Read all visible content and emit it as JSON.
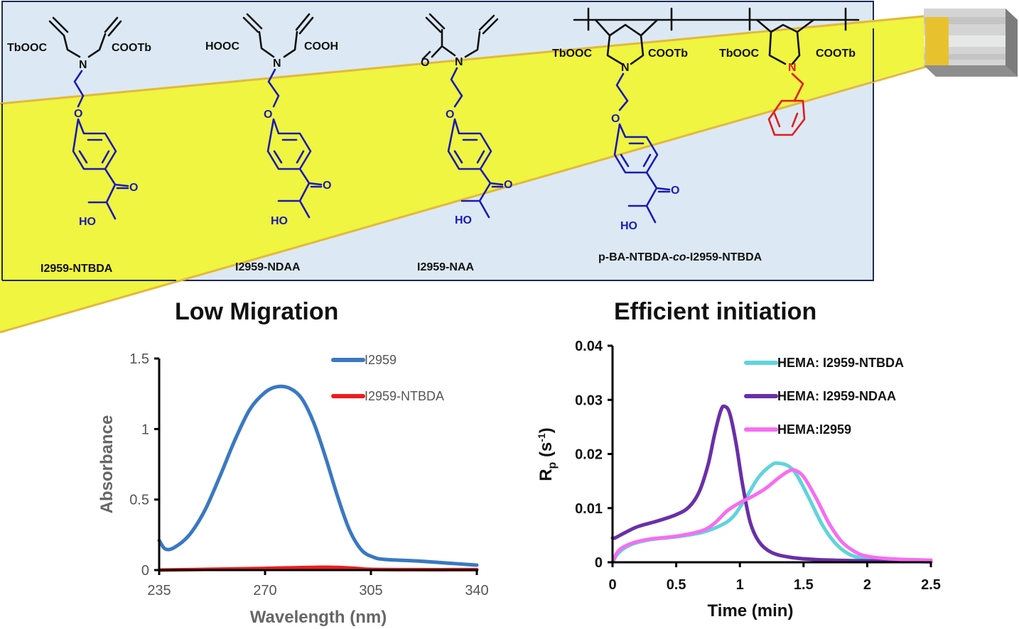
{
  "scheme": {
    "compounds": [
      {
        "name": "I2959-NTBDA",
        "left_group": "TbOOC",
        "right_group": "COOTb"
      },
      {
        "name": "I2959-NDAA",
        "left_group": "HOOC",
        "right_group": "COOH"
      },
      {
        "name": "I2959-NAA"
      },
      {
        "name_prefix": "p-BA-NTBDA-",
        "name_italic": "co",
        "name_suffix": "-I2959-NTBDA",
        "groups": [
          "TbOOC",
          "COOTb",
          "TbOOC",
          "COOTb"
        ]
      }
    ],
    "atoms": {
      "N": "N",
      "O": "O",
      "HO": "HO"
    },
    "colors": {
      "panel_bg": "#dce9f4",
      "beam": "#f0f53a",
      "beam_edge": "#e7bf3a",
      "initiator": "#1a1ab8",
      "benzyl": "#e31b1b"
    }
  },
  "titles": {
    "left": "Low Migration",
    "right": "Efficient initiation"
  },
  "chart_data": [
    {
      "type": "line",
      "title": "Low Migration",
      "xlabel": "Wavelength (nm)",
      "ylabel": "Absorbance",
      "xlim": [
        235,
        340
      ],
      "ylim": [
        0,
        1.5
      ],
      "xticks": [
        "235",
        "270",
        "305",
        "340"
      ],
      "yticks": [
        "0",
        "0.5",
        "1",
        "1.5"
      ],
      "legend_position": "top-right",
      "series": [
        {
          "name": "I2959",
          "color": "#3a78c2",
          "x": [
            235,
            237,
            240,
            245,
            250,
            255,
            260,
            265,
            270,
            274,
            278,
            282,
            286,
            290,
            294,
            298,
            302,
            306,
            310,
            320,
            330,
            340
          ],
          "y": [
            0.21,
            0.15,
            0.16,
            0.25,
            0.42,
            0.66,
            0.92,
            1.14,
            1.26,
            1.3,
            1.29,
            1.22,
            1.05,
            0.8,
            0.52,
            0.28,
            0.14,
            0.09,
            0.075,
            0.065,
            0.05,
            0.035
          ]
        },
        {
          "name": "I2959-NTBDA",
          "color": "#ee1c1c",
          "x": [
            235,
            250,
            270,
            290,
            300,
            305,
            320,
            340
          ],
          "y": [
            0.0,
            0.005,
            0.012,
            0.02,
            0.012,
            0.005,
            0.003,
            0.003
          ]
        }
      ]
    },
    {
      "type": "line",
      "title": "Efficient initiation",
      "xlabel": "Time (min)",
      "ylabel_main": "R",
      "ylabel_sub": "p",
      "ylabel_unit_open": " (s",
      "ylabel_sup": "-1",
      "ylabel_unit_close": ")",
      "xlim": [
        0,
        2.5
      ],
      "ylim": [
        0,
        0.04
      ],
      "xticks": [
        "0",
        "0.5",
        "1",
        "1.5",
        "2",
        "2.5"
      ],
      "yticks": [
        "0",
        "0.01",
        "0.02",
        "0.03",
        "0.04"
      ],
      "legend_position": "top-right",
      "series": [
        {
          "name": "HEMA: I2959-NTBDA",
          "color": "#5fd4dc",
          "x": [
            0,
            0.05,
            0.15,
            0.3,
            0.5,
            0.7,
            0.85,
            0.95,
            1.05,
            1.15,
            1.25,
            1.3,
            1.38,
            1.45,
            1.55,
            1.65,
            1.75,
            1.85,
            1.95,
            2.1,
            2.3,
            2.5
          ],
          "y": [
            0.0,
            0.0018,
            0.0033,
            0.0042,
            0.0047,
            0.0055,
            0.0068,
            0.0085,
            0.012,
            0.0158,
            0.018,
            0.0183,
            0.0178,
            0.016,
            0.0115,
            0.0068,
            0.0035,
            0.0016,
            0.0008,
            0.0004,
            0.0003,
            0.0003
          ]
        },
        {
          "name": "HEMA: I2959-NDAA",
          "color": "#6a2fa8",
          "x": [
            0,
            0.02,
            0.1,
            0.2,
            0.35,
            0.5,
            0.6,
            0.68,
            0.75,
            0.8,
            0.85,
            0.88,
            0.92,
            0.97,
            1.02,
            1.08,
            1.15,
            1.25,
            1.4,
            1.6,
            1.9,
            2.2,
            2.5
          ],
          "y": [
            0.0045,
            0.0045,
            0.0055,
            0.0066,
            0.0076,
            0.0088,
            0.0102,
            0.013,
            0.018,
            0.0235,
            0.028,
            0.0288,
            0.0275,
            0.022,
            0.0145,
            0.0075,
            0.0038,
            0.0018,
            0.0009,
            0.0005,
            0.0003,
            0.0002,
            0.0001
          ]
        },
        {
          "name": "HEMA:I2959",
          "color": "#f56ef0",
          "x": [
            0,
            0.05,
            0.15,
            0.3,
            0.5,
            0.7,
            0.8,
            0.9,
            1.0,
            1.1,
            1.2,
            1.3,
            1.38,
            1.43,
            1.5,
            1.6,
            1.7,
            1.8,
            1.9,
            2.0,
            2.2,
            2.5
          ],
          "y": [
            0.0,
            0.0022,
            0.0035,
            0.0043,
            0.0048,
            0.0058,
            0.0072,
            0.0095,
            0.011,
            0.0122,
            0.0136,
            0.0155,
            0.0168,
            0.017,
            0.0158,
            0.0118,
            0.0072,
            0.0038,
            0.002,
            0.0011,
            0.0006,
            0.0004
          ]
        }
      ]
    }
  ]
}
